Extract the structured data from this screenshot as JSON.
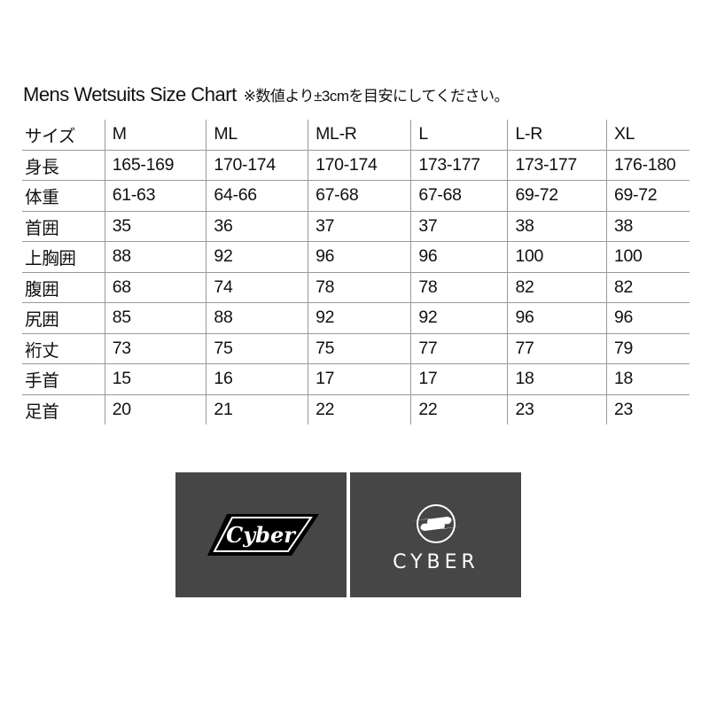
{
  "title": "Mens Wetsuits Size Chart",
  "note": "※数値より±3cmを目安にしてください。",
  "table": {
    "header": [
      "サイズ",
      "M",
      "ML",
      "ML-R",
      "L",
      "L-R",
      "XL"
    ],
    "rows": [
      [
        "身長",
        "165-169",
        "170-174",
        "170-174",
        "173-177",
        "173-177",
        "176-180"
      ],
      [
        "体重",
        "61-63",
        "64-66",
        "67-68",
        "67-68",
        "69-72",
        "69-72"
      ],
      [
        "首囲",
        "35",
        "36",
        "37",
        "37",
        "38",
        "38"
      ],
      [
        "上胸囲",
        "88",
        "92",
        "96",
        "96",
        "100",
        "100"
      ],
      [
        "腹囲",
        "68",
        "74",
        "78",
        "78",
        "82",
        "82"
      ],
      [
        "尻囲",
        "85",
        "88",
        "92",
        "92",
        "96",
        "96"
      ],
      [
        "裄丈",
        "73",
        "75",
        "75",
        "77",
        "77",
        "79"
      ],
      [
        "手首",
        "15",
        "16",
        "17",
        "17",
        "18",
        "18"
      ],
      [
        "足首",
        "20",
        "21",
        "22",
        "22",
        "23",
        "23"
      ]
    ]
  },
  "logos": {
    "script": "Cyber",
    "wordmark": "CYBER"
  },
  "colors": {
    "panel": "#464646"
  }
}
